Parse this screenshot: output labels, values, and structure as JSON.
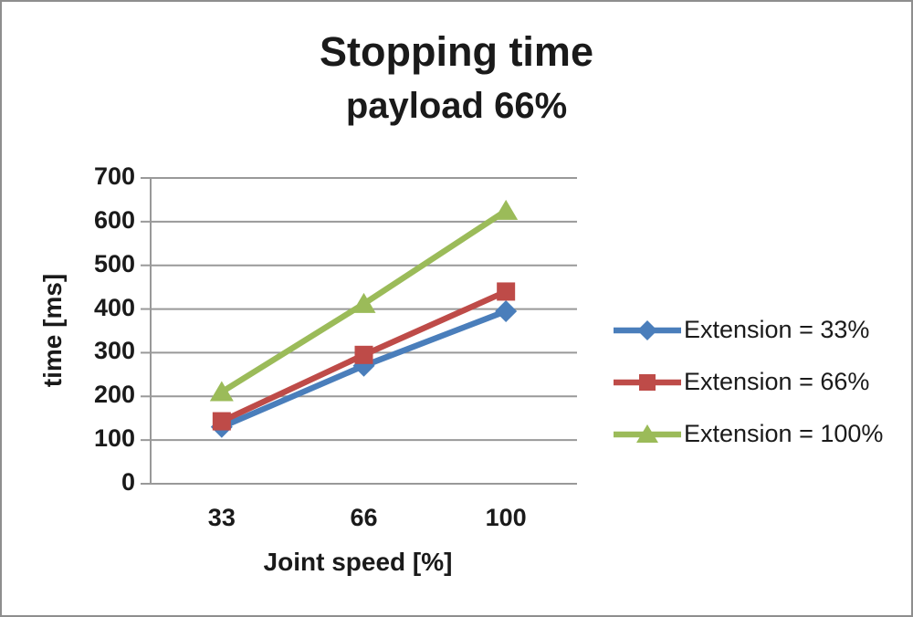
{
  "chart_data": {
    "type": "line",
    "title": "Stopping time",
    "subtitle": "payload 66%",
    "xlabel": "Joint speed [%]",
    "ylabel": "time [ms]",
    "categories": [
      "33",
      "66",
      "100"
    ],
    "series": [
      {
        "name": "Extension = 33%",
        "values": [
          130,
          270,
          395
        ],
        "color": "#4A7EBB",
        "marker": "diamond"
      },
      {
        "name": "Extension = 66%",
        "values": [
          143,
          295,
          440
        ],
        "color": "#BE4B48",
        "marker": "square"
      },
      {
        "name": "Extension = 100%",
        "values": [
          210,
          412,
          625
        ],
        "color": "#9BBB59",
        "marker": "triangle"
      }
    ],
    "ylim": [
      0,
      700
    ],
    "yticks": [
      0,
      100,
      200,
      300,
      400,
      500,
      600,
      700
    ],
    "grid": true,
    "legend_position": "right",
    "colors": {
      "gridline": "#999999",
      "axis": "#999999",
      "text": "#1a1a1a",
      "border": "#8E8E8E",
      "background": "#ffffff"
    }
  }
}
